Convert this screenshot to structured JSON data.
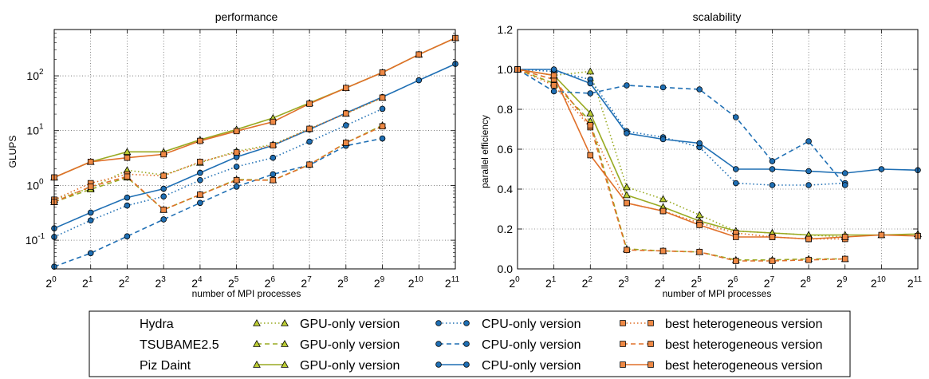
{
  "colors": {
    "gpu": "#99aa22",
    "gpu_marker": "#bbcc33",
    "cpu": "#1f6fb4",
    "het": "#e0702a",
    "het_marker": "#ee8844"
  },
  "chart_data": [
    {
      "type": "line",
      "title": "performance",
      "xlabel": "number of MPI processes",
      "ylabel": "GLUPS",
      "xscale": "log2",
      "yscale": "log10",
      "xlim_exponent": [
        0,
        11
      ],
      "ylim": [
        0.03,
        700
      ],
      "grid": true,
      "x_tick_labels": [
        {
          "base": "2",
          "exp": "0"
        },
        {
          "base": "2",
          "exp": "1"
        },
        {
          "base": "2",
          "exp": "2"
        },
        {
          "base": "2",
          "exp": "3"
        },
        {
          "base": "2",
          "exp": "4"
        },
        {
          "base": "2",
          "exp": "5"
        },
        {
          "base": "2",
          "exp": "6"
        },
        {
          "base": "2",
          "exp": "7"
        },
        {
          "base": "2",
          "exp": "8"
        },
        {
          "base": "2",
          "exp": "9"
        },
        {
          "base": "2",
          "exp": "10"
        },
        {
          "base": "2",
          "exp": "11"
        }
      ],
      "y_ticks": [
        0.1,
        1,
        10,
        100
      ],
      "y_tick_labels": [
        {
          "base": "10",
          "exp": "-1"
        },
        {
          "base": "10",
          "exp": "0"
        },
        {
          "base": "10",
          "exp": "1"
        },
        {
          "base": "10",
          "exp": "2"
        }
      ],
      "series": [
        {
          "system": "Hydra",
          "version": "GPU-only",
          "style": "dotted",
          "marker": "triangle",
          "x": [
            1,
            2,
            4,
            8,
            16,
            32,
            64,
            128,
            256,
            512
          ],
          "y": [
            0.55,
            0.9,
            1.9,
            1.55,
            2.6,
            4.2,
            5.6,
            10.8,
            20.5,
            40
          ]
        },
        {
          "system": "TSUBAME2.5",
          "version": "GPU-only",
          "style": "dashed",
          "marker": "triangle",
          "x": [
            1,
            2,
            4,
            8,
            16,
            32,
            64,
            128,
            256,
            512
          ],
          "y": [
            0.5,
            0.85,
            1.4,
            0.36,
            0.68,
            1.28,
            1.25,
            2.4,
            6,
            12.5
          ]
        },
        {
          "system": "Piz Daint",
          "version": "GPU-only",
          "style": "solid",
          "marker": "triangle",
          "x": [
            1,
            2,
            4,
            8,
            16,
            32,
            64,
            128,
            256,
            512,
            1024,
            2048
          ],
          "y": [
            1.4,
            2.7,
            4.1,
            4.1,
            6.8,
            10.5,
            17,
            32,
            60,
            115,
            245,
            490
          ]
        },
        {
          "system": "Hydra",
          "version": "CPU-only",
          "style": "dotted",
          "marker": "circle",
          "x": [
            1,
            2,
            4,
            8,
            16,
            32,
            64,
            128,
            256,
            512
          ],
          "y": [
            0.115,
            0.23,
            0.43,
            0.63,
            1.25,
            2.2,
            3.2,
            6.3,
            12.5,
            25
          ]
        },
        {
          "system": "TSUBAME2.5",
          "version": "CPU-only",
          "style": "dashed",
          "marker": "circle",
          "x": [
            1,
            2,
            4,
            8,
            16,
            32,
            64,
            128,
            256,
            512
          ],
          "y": [
            0.033,
            0.058,
            0.118,
            0.24,
            0.48,
            0.95,
            1.6,
            2.35,
            5.3,
            7.2
          ]
        },
        {
          "system": "Piz Daint",
          "version": "CPU-only",
          "style": "solid",
          "marker": "circle",
          "x": [
            1,
            2,
            4,
            8,
            16,
            32,
            64,
            128,
            256,
            512,
            1024,
            2048
          ],
          "y": [
            0.165,
            0.32,
            0.6,
            0.87,
            1.7,
            3.3,
            5.4,
            10.5,
            21,
            41,
            83,
            165
          ]
        },
        {
          "system": "Hydra",
          "version": "best heterogeneous",
          "style": "dotted",
          "marker": "square",
          "x": [
            1,
            2,
            4,
            8,
            16,
            32,
            64,
            128,
            256,
            512
          ],
          "y": [
            0.55,
            1.1,
            1.6,
            1.5,
            2.7,
            4.0,
            5.4,
            10.8,
            20.5,
            40
          ]
        },
        {
          "system": "TSUBAME2.5",
          "version": "best heterogeneous",
          "style": "dashed",
          "marker": "square",
          "x": [
            1,
            2,
            4,
            8,
            16,
            32,
            64,
            128,
            256,
            512
          ],
          "y": [
            0.5,
            0.95,
            1.45,
            0.36,
            0.68,
            1.25,
            1.25,
            2.4,
            6,
            12
          ]
        },
        {
          "system": "Piz Daint",
          "version": "best heterogeneous",
          "style": "solid",
          "marker": "square",
          "x": [
            1,
            2,
            4,
            8,
            16,
            32,
            64,
            128,
            256,
            512,
            1024,
            2048
          ],
          "y": [
            1.4,
            2.7,
            3.2,
            3.7,
            6.5,
            9.8,
            14.5,
            31,
            60,
            115,
            245,
            490
          ]
        }
      ]
    },
    {
      "type": "line",
      "title": "scalability",
      "xlabel": "number of MPI processes",
      "ylabel": "parallel efficiency",
      "xscale": "log2",
      "xlim_exponent": [
        0,
        11
      ],
      "ylim": [
        0.0,
        1.2
      ],
      "grid": true,
      "x_tick_labels": [
        {
          "base": "2",
          "exp": "0"
        },
        {
          "base": "2",
          "exp": "1"
        },
        {
          "base": "2",
          "exp": "2"
        },
        {
          "base": "2",
          "exp": "3"
        },
        {
          "base": "2",
          "exp": "4"
        },
        {
          "base": "2",
          "exp": "5"
        },
        {
          "base": "2",
          "exp": "6"
        },
        {
          "base": "2",
          "exp": "7"
        },
        {
          "base": "2",
          "exp": "8"
        },
        {
          "base": "2",
          "exp": "9"
        },
        {
          "base": "2",
          "exp": "10"
        },
        {
          "base": "2",
          "exp": "11"
        }
      ],
      "y_ticks": [
        0.0,
        0.2,
        0.4,
        0.6,
        0.8,
        1.0,
        1.2
      ],
      "y_tick_labels": [
        "0.0",
        "0.2",
        "0.4",
        "0.6",
        "0.8",
        "1.0",
        "1.2"
      ],
      "series": [
        {
          "system": "Hydra",
          "version": "GPU-only",
          "style": "dotted",
          "marker": "triangle",
          "x": [
            1,
            2,
            4,
            8,
            16,
            32,
            64,
            128,
            256,
            512
          ],
          "y": [
            1.0,
            0.97,
            0.99,
            0.41,
            0.35,
            0.27,
            0.19,
            0.18,
            0.17,
            0.16
          ]
        },
        {
          "system": "TSUBAME2.5",
          "version": "GPU-only",
          "style": "dashed",
          "marker": "triangle",
          "x": [
            1,
            2,
            4,
            8,
            16,
            32,
            64,
            128,
            256,
            512
          ],
          "y": [
            1.0,
            0.93,
            0.74,
            0.1,
            0.09,
            0.085,
            0.045,
            0.045,
            0.05,
            0.05
          ]
        },
        {
          "system": "Piz Daint",
          "version": "GPU-only",
          "style": "solid",
          "marker": "triangle",
          "x": [
            1,
            2,
            4,
            8,
            16,
            32,
            64,
            128,
            256,
            512,
            1024,
            2048
          ],
          "y": [
            1.0,
            0.97,
            0.78,
            0.37,
            0.31,
            0.24,
            0.19,
            0.18,
            0.17,
            0.17,
            0.17,
            0.175
          ]
        },
        {
          "system": "Hydra",
          "version": "CPU-only",
          "style": "dotted",
          "marker": "circle",
          "x": [
            1,
            2,
            4,
            8,
            16,
            32,
            64,
            128,
            256,
            512
          ],
          "y": [
            1.0,
            0.99,
            0.95,
            0.69,
            0.66,
            0.61,
            0.43,
            0.42,
            0.42,
            0.43
          ]
        },
        {
          "system": "TSUBAME2.5",
          "version": "CPU-only",
          "style": "dashed",
          "marker": "circle",
          "x": [
            1,
            2,
            4,
            8,
            16,
            32,
            64,
            128,
            256,
            512
          ],
          "y": [
            1.0,
            0.89,
            0.88,
            0.92,
            0.91,
            0.9,
            0.76,
            0.54,
            0.64,
            0.42
          ]
        },
        {
          "system": "Piz Daint",
          "version": "CPU-only",
          "style": "solid",
          "marker": "circle",
          "x": [
            1,
            2,
            4,
            8,
            16,
            32,
            64,
            128,
            256,
            512,
            1024,
            2048
          ],
          "y": [
            1.0,
            1.0,
            0.93,
            0.68,
            0.65,
            0.63,
            0.5,
            0.5,
            0.49,
            0.48,
            0.5,
            0.495
          ]
        },
        {
          "system": "Hydra",
          "version": "best heterogeneous",
          "style": "dotted",
          "marker": "square",
          "x": [
            1,
            2,
            4,
            8,
            16,
            32,
            64,
            128,
            256,
            512
          ],
          "y": [
            1.0,
            0.92,
            0.71,
            0.33,
            0.29,
            0.23,
            0.18,
            0.16,
            0.15,
            0.15
          ]
        },
        {
          "system": "TSUBAME2.5",
          "version": "best heterogeneous",
          "style": "dashed",
          "marker": "square",
          "x": [
            1,
            2,
            4,
            8,
            16,
            32,
            64,
            128,
            256,
            512
          ],
          "y": [
            1.0,
            0.95,
            0.72,
            0.095,
            0.09,
            0.085,
            0.04,
            0.04,
            0.045,
            0.05
          ]
        },
        {
          "system": "Piz Daint",
          "version": "best heterogeneous",
          "style": "solid",
          "marker": "square",
          "x": [
            1,
            2,
            4,
            8,
            16,
            32,
            64,
            128,
            256,
            512,
            1024,
            2048
          ],
          "y": [
            1.0,
            0.97,
            0.57,
            0.33,
            0.29,
            0.22,
            0.16,
            0.16,
            0.15,
            0.16,
            0.17,
            0.165
          ]
        }
      ]
    }
  ],
  "legend": {
    "systems": [
      "Hydra",
      "TSUBAME2.5",
      "Piz Daint"
    ],
    "versions": [
      "GPU-only version",
      "CPU-only version",
      "best heterogeneous version"
    ]
  }
}
